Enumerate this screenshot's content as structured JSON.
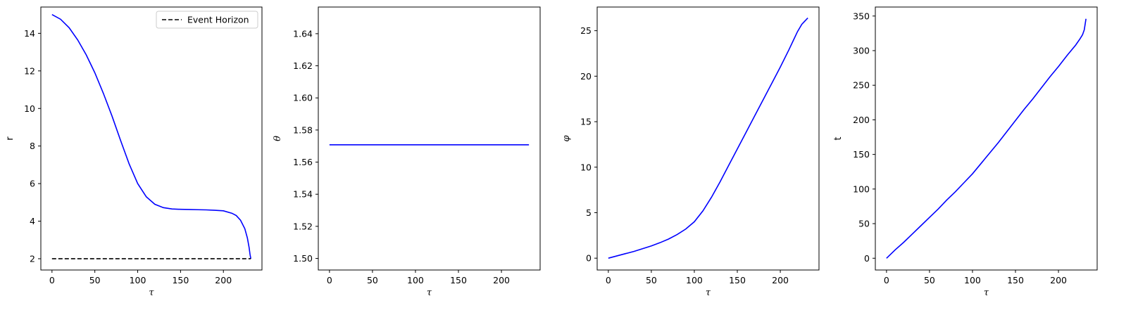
{
  "chart_data": [
    {
      "type": "line",
      "xlabel": "τ",
      "ylabel": "r",
      "xlim": [
        -13,
        245
      ],
      "ylim": [
        1.4,
        15.4
      ],
      "xticks": [
        0,
        50,
        100,
        150,
        200
      ],
      "yticks": [
        2,
        4,
        6,
        8,
        10,
        12,
        14
      ],
      "ytick_labels": [
        "2",
        "4",
        "6",
        "8",
        "10",
        "12",
        "14"
      ],
      "legend": "top-right",
      "series": [
        {
          "color": "#0000ff",
          "style": "solid",
          "x": [
            0,
            10,
            20,
            30,
            40,
            50,
            60,
            70,
            80,
            90,
            100,
            110,
            120,
            130,
            140,
            150,
            160,
            170,
            180,
            190,
            200,
            210,
            215,
            220,
            225,
            228,
            230,
            231,
            232
          ],
          "y": [
            15.0,
            14.75,
            14.3,
            13.65,
            12.85,
            11.9,
            10.8,
            9.6,
            8.3,
            7.05,
            6.0,
            5.3,
            4.9,
            4.72,
            4.65,
            4.63,
            4.62,
            4.61,
            4.6,
            4.58,
            4.55,
            4.42,
            4.3,
            4.05,
            3.6,
            3.1,
            2.6,
            2.25,
            2.0
          ]
        },
        {
          "name": "Event Horizon",
          "color": "#000000",
          "style": "dashed",
          "x": [
            0,
            232
          ],
          "y": [
            2,
            2
          ]
        }
      ]
    },
    {
      "type": "line",
      "xlabel": "τ",
      "ylabel": "θ",
      "xlim": [
        -13,
        245
      ],
      "ylim": [
        1.4928,
        1.6566
      ],
      "xticks": [
        0,
        50,
        100,
        150,
        200
      ],
      "yticks": [
        1.5,
        1.52,
        1.54,
        1.56,
        1.58,
        1.6,
        1.62,
        1.64
      ],
      "ytick_labels": [
        "1.50",
        "1.52",
        "1.54",
        "1.56",
        "1.58",
        "1.60",
        "1.62",
        "1.64"
      ],
      "series": [
        {
          "color": "#0000ff",
          "style": "solid",
          "x": [
            0,
            232
          ],
          "y": [
            1.5708,
            1.5708
          ]
        }
      ]
    },
    {
      "type": "line",
      "xlabel": "τ",
      "ylabel": "φ",
      "xlim": [
        -13,
        245
      ],
      "ylim": [
        -1.3,
        27.6
      ],
      "xticks": [
        0,
        50,
        100,
        150,
        200
      ],
      "yticks": [
        0,
        5,
        10,
        15,
        20,
        25
      ],
      "ytick_labels": [
        "0",
        "5",
        "10",
        "15",
        "20",
        "25"
      ],
      "series": [
        {
          "color": "#0000ff",
          "style": "solid",
          "x": [
            0,
            10,
            20,
            30,
            40,
            50,
            60,
            70,
            80,
            90,
            100,
            110,
            120,
            130,
            140,
            150,
            160,
            170,
            180,
            190,
            200,
            210,
            215,
            220,
            225,
            228,
            230,
            231,
            232
          ],
          "y": [
            0,
            0.25,
            0.5,
            0.75,
            1.05,
            1.35,
            1.7,
            2.1,
            2.6,
            3.2,
            4.0,
            5.2,
            6.7,
            8.4,
            10.2,
            12.0,
            13.8,
            15.6,
            17.4,
            19.2,
            21.0,
            22.9,
            23.9,
            24.9,
            25.7,
            26.0,
            26.2,
            26.3,
            26.4
          ]
        }
      ]
    },
    {
      "type": "line",
      "xlabel": "τ",
      "ylabel": "t",
      "xlim": [
        -13,
        245
      ],
      "ylim": [
        -17,
        363
      ],
      "xticks": [
        0,
        50,
        100,
        150,
        200
      ],
      "yticks": [
        0,
        50,
        100,
        150,
        200,
        250,
        300,
        350
      ],
      "ytick_labels": [
        "0",
        "50",
        "100",
        "150",
        "200",
        "250",
        "300",
        "350"
      ],
      "series": [
        {
          "color": "#0000ff",
          "style": "solid",
          "x": [
            0,
            10,
            20,
            30,
            40,
            50,
            60,
            70,
            80,
            90,
            100,
            110,
            120,
            130,
            140,
            150,
            160,
            170,
            180,
            190,
            200,
            210,
            220,
            225,
            228,
            230,
            231,
            232
          ],
          "y": [
            0,
            12,
            23,
            35,
            47,
            59,
            71,
            84,
            96,
            109,
            122,
            137,
            152,
            167,
            183,
            199,
            215,
            230,
            246,
            262,
            277,
            293,
            308,
            317,
            323,
            330,
            338,
            346
          ]
        }
      ]
    }
  ]
}
